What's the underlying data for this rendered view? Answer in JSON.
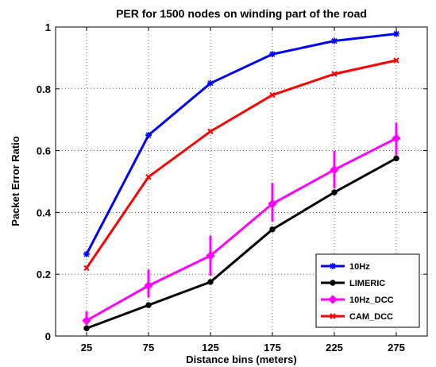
{
  "chart_data": {
    "type": "line",
    "title": "PER for 1500 nodes on winding part of the road",
    "xlabel": "Distance bins (meters)",
    "ylabel": "Packet Error Ratio",
    "categories": [
      "25",
      "75",
      "125",
      "175",
      "225",
      "275"
    ],
    "x": [
      25,
      75,
      125,
      175,
      225,
      275
    ],
    "xlim": [
      0,
      300
    ],
    "ylim": [
      0,
      1
    ],
    "yticks": [
      "0",
      "0.2",
      "0.4",
      "0.6",
      "0.8",
      "1"
    ],
    "grid": true,
    "legend_position": "bottom-right",
    "series": [
      {
        "name": "10Hz",
        "color": "#0000ff",
        "marker": "star",
        "values": [
          0.265,
          0.65,
          0.818,
          0.912,
          0.955,
          0.978
        ]
      },
      {
        "name": "LIMERIC",
        "color": "#000000",
        "marker": "dot",
        "values": [
          0.025,
          0.1,
          0.175,
          0.345,
          0.465,
          0.575
        ]
      },
      {
        "name": "10Hz_DCC",
        "color": "#ff00ff",
        "marker": "diamond",
        "values": [
          0.05,
          0.163,
          0.26,
          0.428,
          0.538,
          0.64
        ],
        "error_low": [
          0.035,
          0.125,
          0.195,
          0.37,
          0.478,
          0.585
        ],
        "error_high": [
          0.08,
          0.215,
          0.325,
          0.495,
          0.6,
          0.69
        ]
      },
      {
        "name": "CAM_DCC",
        "color": "#ff0000",
        "marker": "x",
        "values": [
          0.22,
          0.515,
          0.662,
          0.78,
          0.848,
          0.892
        ]
      }
    ]
  }
}
